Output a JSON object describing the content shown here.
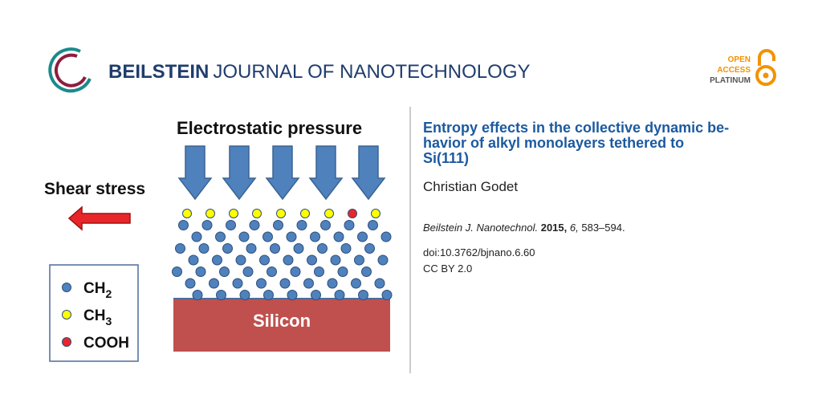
{
  "header": {
    "logo_bold": "BEILSTEIN",
    "logo_rest": "JOURNAL OF NANOTECHNOLOGY"
  },
  "badge": {
    "line1": "OPEN",
    "line2": "ACCESS",
    "line3": "PLATINUM"
  },
  "figure": {
    "pressure_label": "Electrostatic pressure",
    "shear_label": "Shear stress",
    "substrate_label": "Silicon",
    "legend": [
      {
        "base": "CH",
        "sub": "2"
      },
      {
        "base": "CH",
        "sub": "3"
      },
      {
        "base": "COOH",
        "sub": null
      }
    ]
  },
  "article": {
    "title_lines": [
      "Entropy effects in the collective dynamic be-",
      "havior of alkyl monolayers tethered to",
      "Si(111)"
    ],
    "author": "Christian Godet",
    "journal": "Beilstein J. Nanotechnol.",
    "year": "2015,",
    "volume": "6,",
    "pages": "583–594.",
    "doi": "doi:10.3762/bjnano.6.60",
    "license": "CC BY 2.0"
  }
}
